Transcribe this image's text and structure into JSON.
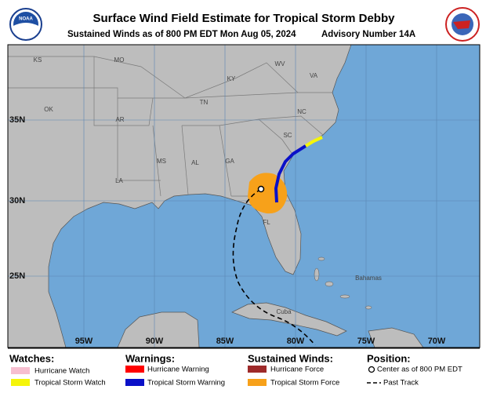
{
  "header": {
    "title": "Surface Wind Field Estimate for Tropical Storm Debby",
    "subtitle": "Sustained Winds as of 800 PM EDT Mon Aug 05, 2024",
    "advisory": "Advisory Number 14A",
    "logo": "NOAA"
  },
  "map": {
    "lat_labels": [
      "35N",
      "30N",
      "25N"
    ],
    "lon_labels": [
      "95W",
      "90W",
      "85W",
      "80W",
      "75W",
      "70W"
    ],
    "place_labels": [
      "KS",
      "MO",
      "KY",
      "WV",
      "VA",
      "OK",
      "TN",
      "NC",
      "AR",
      "SC",
      "MS",
      "AL",
      "GA",
      "LA",
      "FL",
      "Bahamas",
      "Cuba"
    ]
  },
  "legend": {
    "watches": {
      "title": "Watches:",
      "items": [
        "Hurricane Watch",
        "Tropical Storm Watch"
      ]
    },
    "warnings": {
      "title": "Warnings:",
      "items": [
        "Hurricane Warning",
        "Tropical Storm Warning"
      ]
    },
    "winds": {
      "title": "Sustained Winds:",
      "items": [
        "Hurricane Force",
        "Tropical Storm Force"
      ]
    },
    "position": {
      "title": "Position:",
      "items": [
        "Center as of 800 PM EDT",
        "Past Track"
      ]
    }
  }
}
